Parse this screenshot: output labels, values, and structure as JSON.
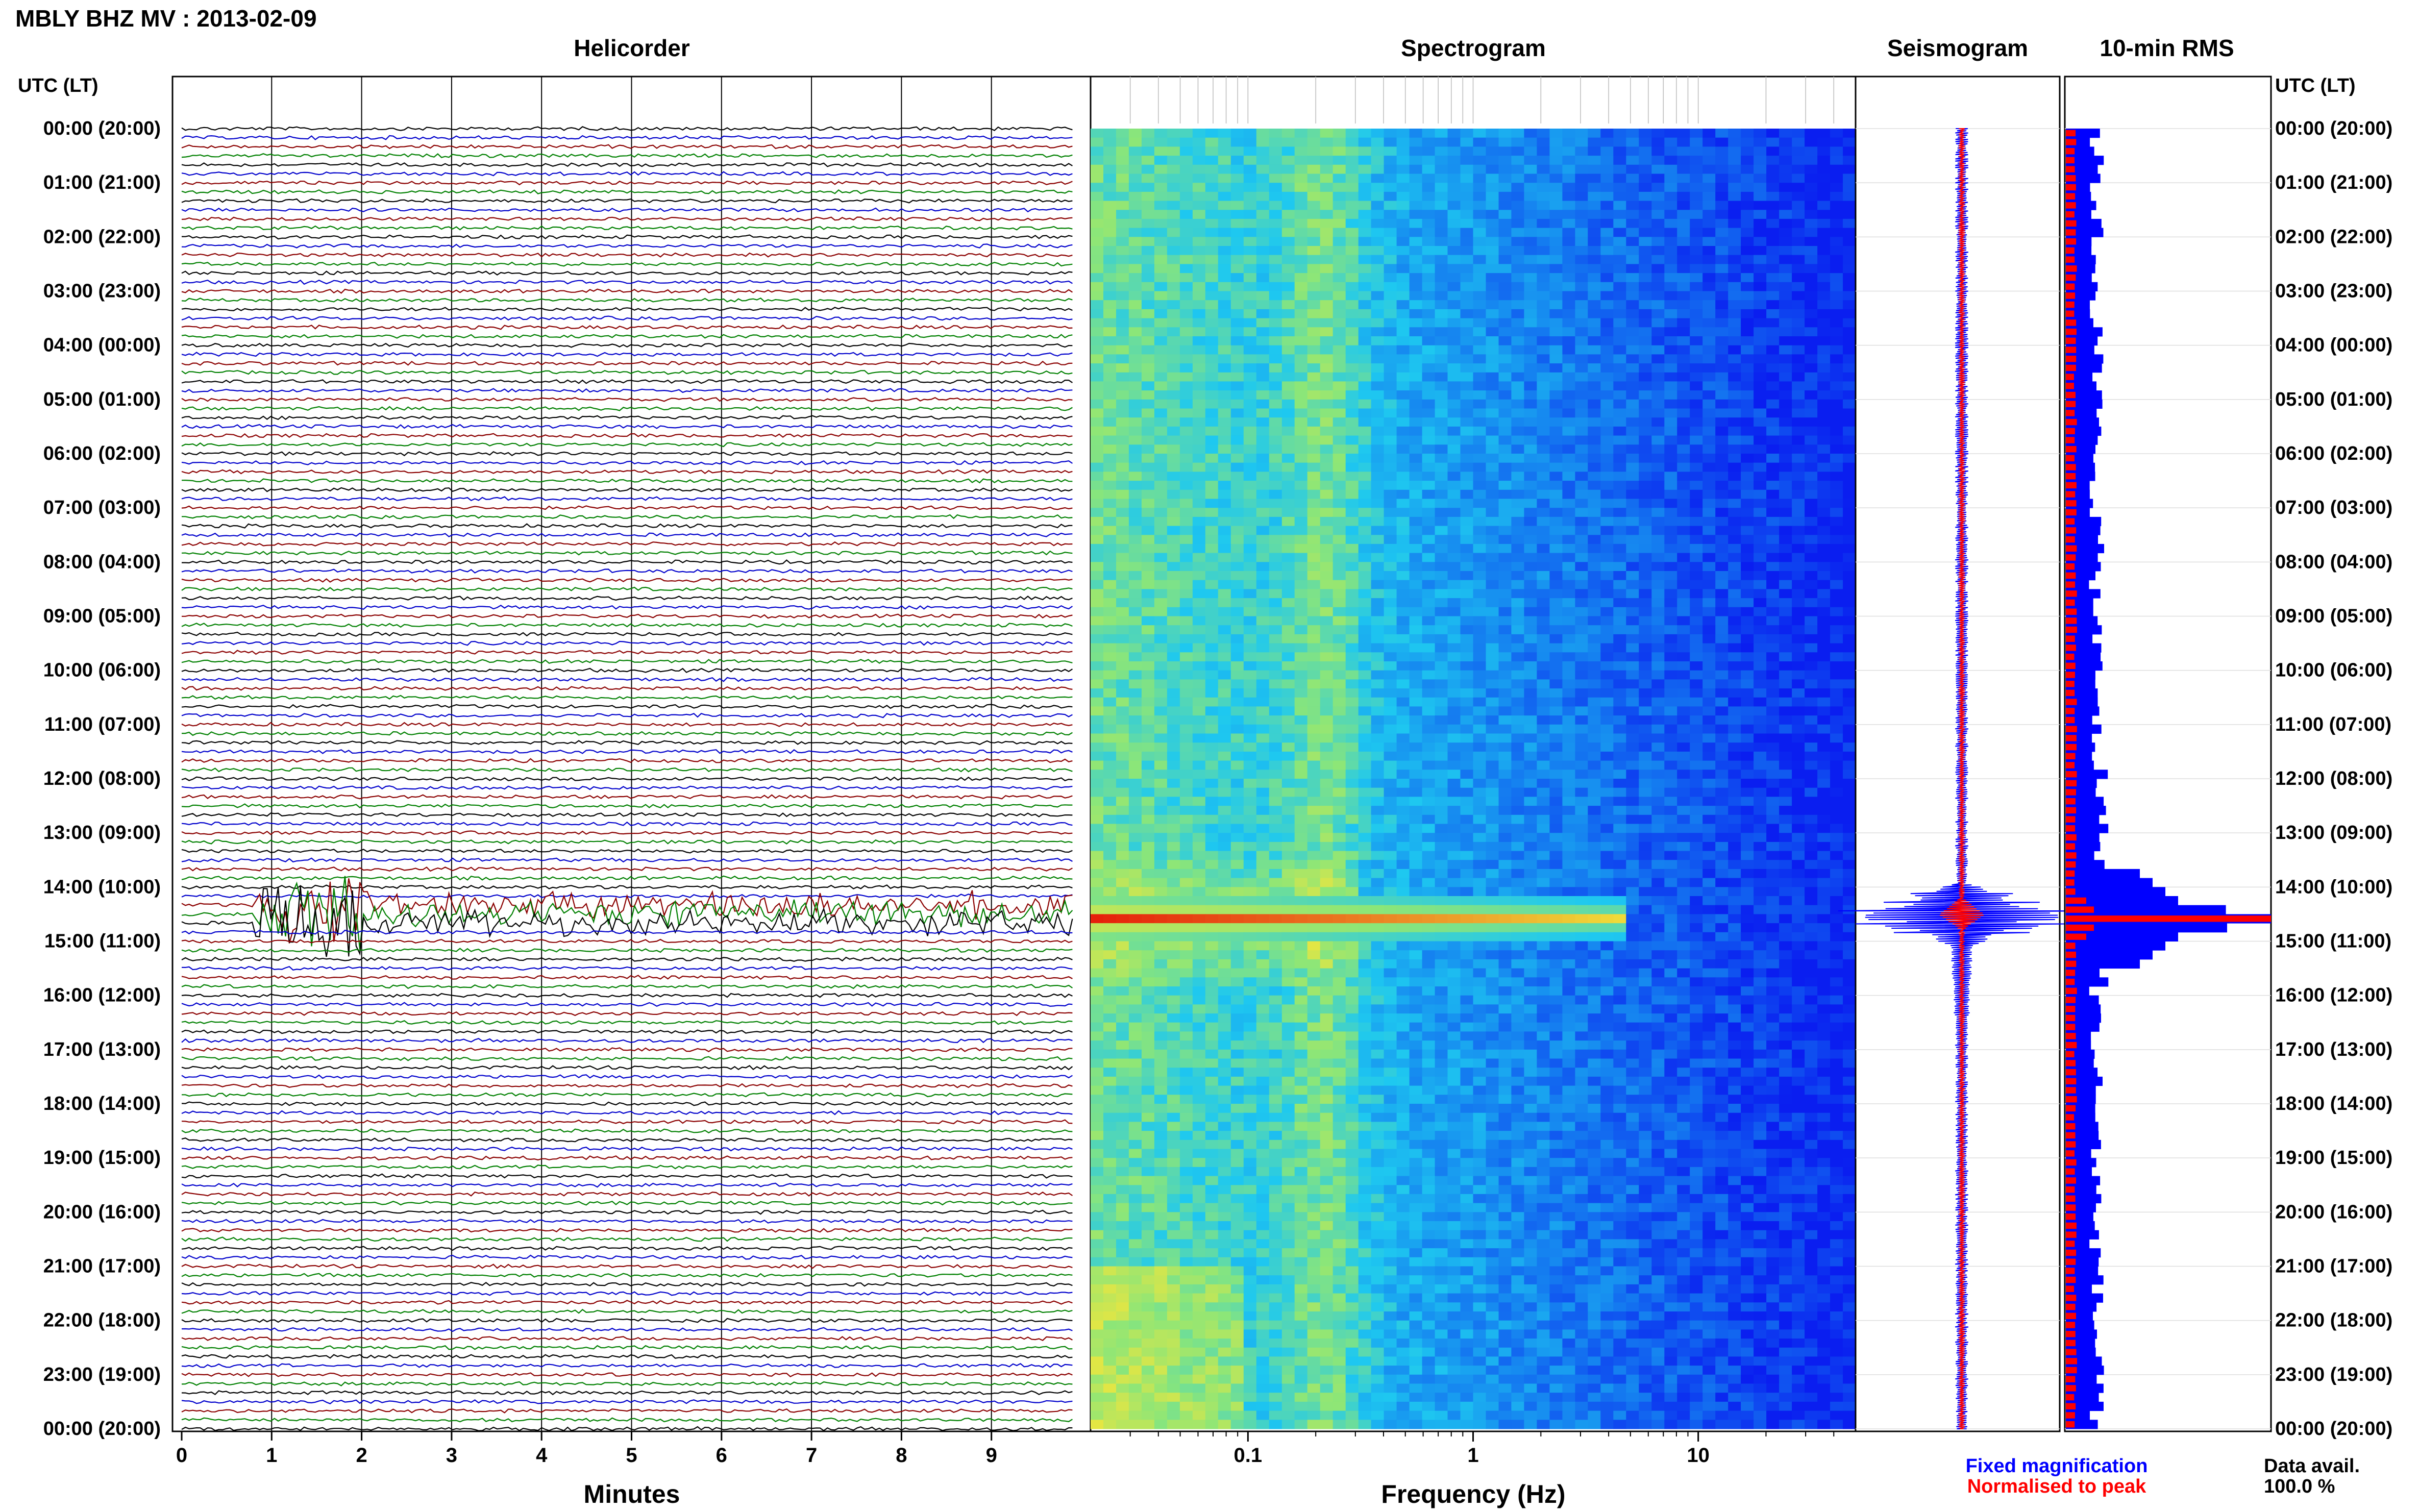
{
  "header": {
    "title": "MBLY BHZ MV : 2013-02-09"
  },
  "panels": {
    "helicorder": "Helicorder",
    "spectrogram": "Spectrogram",
    "seismogram": "Seismogram",
    "rms": "10-min RMS"
  },
  "axes": {
    "time_label_left": "UTC (LT)",
    "time_label_right": "UTC (LT)",
    "minutes_label": "Minutes",
    "frequency_label": "Frequency (Hz)"
  },
  "time_ticks": [
    "00:00 (20:00)",
    "01:00 (21:00)",
    "02:00 (22:00)",
    "03:00 (23:00)",
    "04:00 (00:00)",
    "05:00 (01:00)",
    "06:00 (02:00)",
    "07:00 (03:00)",
    "08:00 (04:00)",
    "09:00 (05:00)",
    "10:00 (06:00)",
    "11:00 (07:00)",
    "12:00 (08:00)",
    "13:00 (09:00)",
    "14:00 (10:00)",
    "15:00 (11:00)",
    "16:00 (12:00)",
    "17:00 (13:00)",
    "18:00 (14:00)",
    "19:00 (15:00)",
    "20:00 (16:00)",
    "21:00 (17:00)",
    "22:00 (18:00)",
    "23:00 (19:00)",
    "00:00 (20:00)"
  ],
  "minute_ticks": [
    "0",
    "1",
    "2",
    "3",
    "4",
    "5",
    "6",
    "7",
    "8",
    "9"
  ],
  "freq_ticks": [
    "0.1",
    "1",
    "10"
  ],
  "legend": {
    "fixed": "Fixed magnification",
    "normalised": "Normalised to peak",
    "fixed_color": "#0000ff",
    "normalised_color": "#ff0000"
  },
  "data_avail": {
    "label": "Data avail.",
    "value": "100.0 %"
  },
  "colors": {
    "trace_cycle": [
      "#000000",
      "#0000cc",
      "#8b0000",
      "#008000"
    ],
    "spectro_low": "#0a1ef0",
    "spectro_mid": "#1ea0f0",
    "spectro_high": "#f0e040",
    "spectro_peak": "#e00000"
  },
  "chart_data": {
    "type": "heatmap",
    "title": "MBLY BHZ MV : 2013-02-09",
    "helicorder": {
      "xlabel": "Minutes",
      "xlim": [
        0,
        10
      ],
      "rows_per_hour": 6,
      "hours": 24,
      "events": [
        {
          "time_utc": "14:30",
          "minute_onset": 0.8,
          "amplitude": "large"
        }
      ]
    },
    "spectrogram": {
      "xlabel": "Frequency (Hz)",
      "xscale": "log",
      "xlim": [
        0.02,
        50
      ],
      "peak_time_utc": "14:30",
      "peak_band_hz": [
        0.02,
        5
      ]
    },
    "seismogram": {
      "peak_time_utc": "14:30"
    },
    "rms": {
      "interval_min": 10,
      "series": [
        {
          "name": "Fixed magnification",
          "color": "#0000ff"
        },
        {
          "name": "Normalised to peak",
          "color": "#ff0000"
        }
      ],
      "peak_time_utc": "14:30"
    }
  }
}
